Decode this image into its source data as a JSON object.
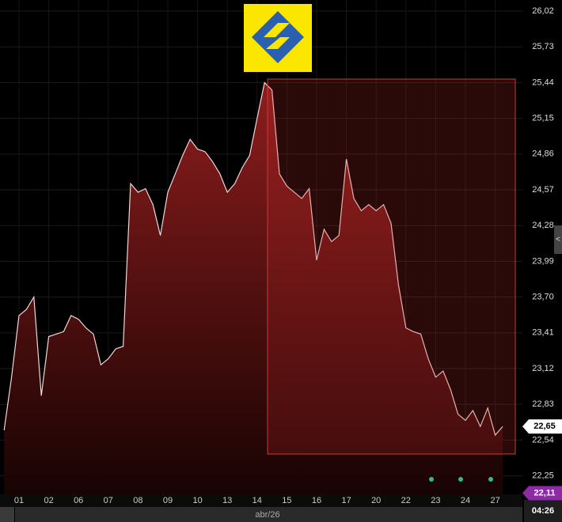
{
  "chart_data": {
    "type": "area",
    "categories": [
      null,
      null,
      "01",
      null,
      null,
      null,
      "02",
      null,
      null,
      null,
      "06",
      null,
      null,
      null,
      "07",
      null,
      null,
      null,
      "08",
      null,
      null,
      null,
      "09",
      null,
      null,
      null,
      "10",
      null,
      null,
      null,
      "13",
      null,
      null,
      null,
      "14",
      null,
      null,
      null,
      "15",
      null,
      null,
      null,
      "16",
      null,
      null,
      null,
      "17",
      null,
      null,
      null,
      "20",
      null,
      null,
      null,
      "22",
      null,
      null,
      null,
      "23",
      null,
      null,
      null,
      "24",
      null,
      null,
      null,
      "27",
      null
    ],
    "series": [
      {
        "color": "#f3d6d6",
        "values": [
          22.62,
          23.05,
          23.55,
          23.6,
          23.7,
          22.9,
          23.38,
          23.4,
          23.42,
          23.55,
          23.52,
          23.45,
          23.4,
          23.15,
          23.2,
          23.28,
          23.3,
          24.62,
          24.55,
          24.58,
          24.45,
          24.2,
          24.55,
          24.7,
          24.85,
          24.98,
          24.9,
          24.88,
          24.8,
          24.7,
          24.55,
          24.62,
          24.75,
          24.85,
          25.15,
          25.44,
          25.38,
          24.7,
          24.6,
          24.55,
          24.5,
          24.58,
          24.0,
          24.25,
          24.15,
          24.2,
          24.82,
          24.5,
          24.4,
          24.45,
          24.4,
          24.45,
          24.3,
          23.8,
          23.45,
          23.42,
          23.4,
          23.2,
          23.05,
          23.1,
          22.95,
          22.75,
          22.7,
          22.78,
          22.65,
          22.8,
          22.58,
          22.65
        ]
      }
    ],
    "ylim": [
      22.1,
      26.11
    ],
    "yticks": [
      {
        "value": 26.02,
        "label": "26,02"
      },
      {
        "value": 25.73,
        "label": "25,73"
      },
      {
        "value": 25.44,
        "label": "25,44"
      },
      {
        "value": 25.15,
        "label": "25,15"
      },
      {
        "value": 24.86,
        "label": "24,86"
      },
      {
        "value": 24.57,
        "label": "24,57"
      },
      {
        "value": 24.28,
        "label": "24,28"
      },
      {
        "value": 23.99,
        "label": "23,99"
      },
      {
        "value": 23.7,
        "label": "23,70"
      },
      {
        "value": 23.41,
        "label": "23,41"
      },
      {
        "value": 23.12,
        "label": "23,12"
      },
      {
        "value": 22.83,
        "label": "22,83"
      },
      {
        "value": 22.54,
        "label": "22,54"
      },
      {
        "value": 22.25,
        "label": "22,25"
      }
    ],
    "grid": true,
    "last_price": {
      "value": 22.65,
      "label": "22,65"
    },
    "marker_price": {
      "value": 22.11,
      "label": "22,11"
    },
    "month_label": "abr/26",
    "time_label": "04:26"
  }
}
